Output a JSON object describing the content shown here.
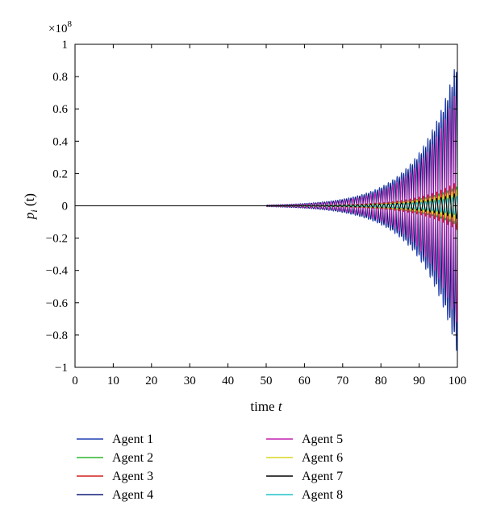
{
  "chart_data": {
    "type": "line",
    "title": "",
    "xlabel_text": "time ",
    "xlabel_var": "t",
    "ylabel_var": "p",
    "ylabel_sub": "i",
    "ylabel_arg": " (t)",
    "y_multiplier": "×10",
    "y_multiplier_exp": "8",
    "xlim": [
      0,
      100
    ],
    "ylim": [
      -1,
      1
    ],
    "xticks": [
      0,
      10,
      20,
      30,
      40,
      50,
      60,
      70,
      80,
      90,
      100
    ],
    "yticks": [
      -1,
      -0.8,
      -0.6,
      -0.4,
      -0.2,
      0,
      0.2,
      0.4,
      0.6,
      0.8,
      1
    ],
    "ytick_labels": [
      "−1",
      "−0.8",
      "−0.6",
      "−0.4",
      "−0.2",
      "0",
      "0.2",
      "0.4",
      "0.6",
      "0.8",
      "1"
    ],
    "grid": false,
    "legend_position": "bottom",
    "oscillation": {
      "onset_time": 50,
      "period": 1.15,
      "envelope_growth_rate": 0.103
    },
    "series": [
      {
        "name": "Agent 1",
        "color": "#1f3fb4",
        "peak_amplitude": 0.92,
        "phase": 0.0
      },
      {
        "name": "Agent 2",
        "color": "#2db52d",
        "peak_amplitude": 0.12,
        "phase": 3.14
      },
      {
        "name": "Agent 3",
        "color": "#d42020",
        "peak_amplitude": 0.15,
        "phase": 0.0
      },
      {
        "name": "Agent 4",
        "color": "#101e78",
        "peak_amplitude": 0.85,
        "phase": 3.14
      },
      {
        "name": "Agent 5",
        "color": "#c020b0",
        "peak_amplitude": 0.74,
        "phase": 0.0
      },
      {
        "name": "Agent 6",
        "color": "#d8d820",
        "peak_amplitude": 0.1,
        "phase": 3.14
      },
      {
        "name": "Agent 7",
        "color": "#000000",
        "peak_amplitude": 0.08,
        "phase": 0.0
      },
      {
        "name": "Agent 8",
        "color": "#20c0c8",
        "peak_amplitude": 0.06,
        "phase": 3.14
      }
    ]
  }
}
